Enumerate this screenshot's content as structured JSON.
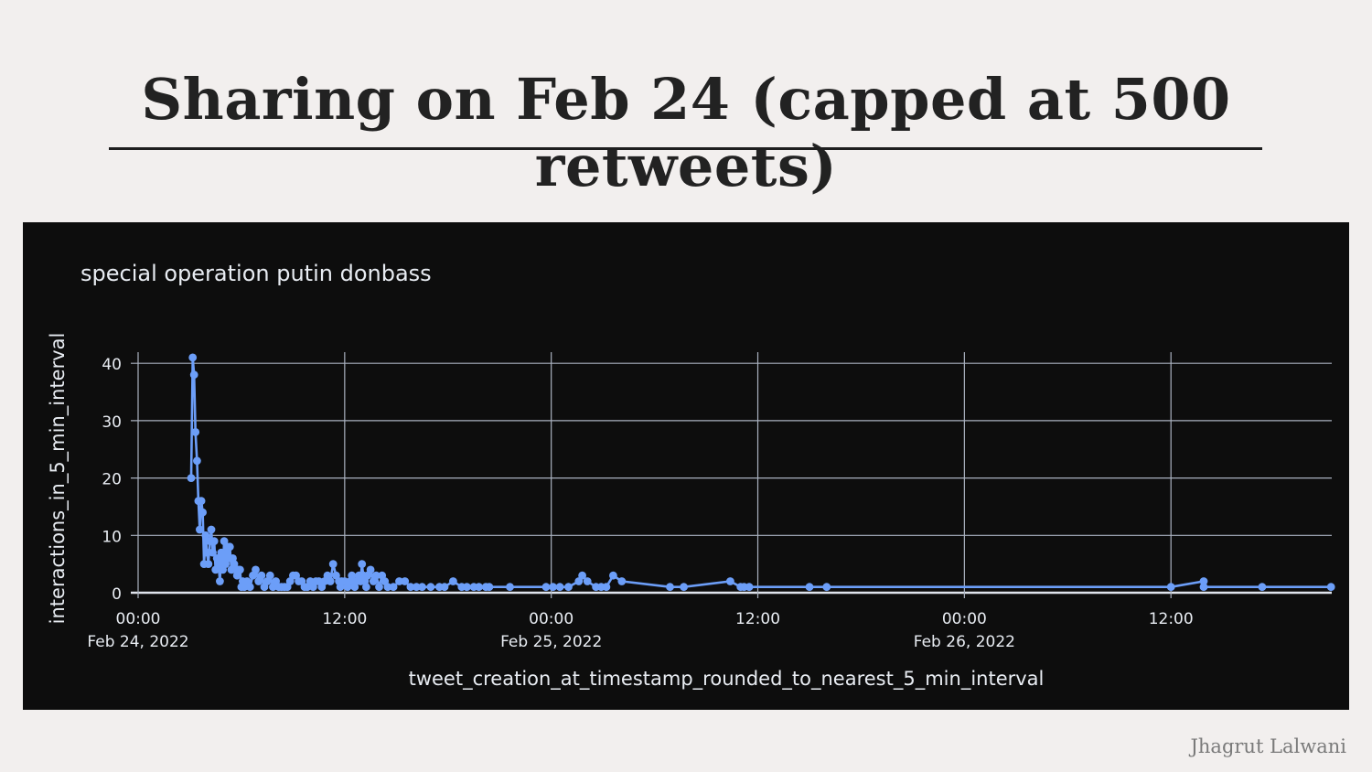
{
  "slide": {
    "title": "Sharing on Feb 24 (capped at 500 retweets)",
    "author": "Jhagrut Lalwani"
  },
  "chart_data": {
    "type": "line",
    "title": "special operation putin donbass",
    "xlabel": "tweet_creation_at_timestamp_rounded_to_nearest_5_min_interval",
    "ylabel": "interactions_in_5_min_interval",
    "x_ticks": [
      {
        "hour": 0,
        "label": "00:00",
        "sublabel": "Feb 24, 2022"
      },
      {
        "hour": 12,
        "label": "12:00",
        "sublabel": ""
      },
      {
        "hour": 24,
        "label": "00:00",
        "sublabel": "Feb 25, 2022"
      },
      {
        "hour": 36,
        "label": "12:00",
        "sublabel": ""
      },
      {
        "hour": 48,
        "label": "00:00",
        "sublabel": "Feb 26, 2022"
      },
      {
        "hour": 60,
        "label": "12:00",
        "sublabel": ""
      }
    ],
    "y_ticks": [
      0,
      10,
      20,
      30,
      40
    ],
    "xlim_hours": [
      0,
      69.3
    ],
    "ylim": [
      0,
      42
    ],
    "grid": true,
    "line_color": "#6c9ef8",
    "series": [
      {
        "points": [
          [
            3.08,
            20
          ],
          [
            3.17,
            41
          ],
          [
            3.25,
            38
          ],
          [
            3.33,
            28
          ],
          [
            3.42,
            23
          ],
          [
            3.5,
            16
          ],
          [
            3.58,
            11
          ],
          [
            3.67,
            16
          ],
          [
            3.75,
            14
          ],
          [
            3.83,
            5
          ],
          [
            3.92,
            10
          ],
          [
            4.0,
            7
          ],
          [
            4.08,
            5
          ],
          [
            4.17,
            9
          ],
          [
            4.25,
            11
          ],
          [
            4.33,
            7
          ],
          [
            4.42,
            9
          ],
          [
            4.5,
            4
          ],
          [
            4.58,
            6
          ],
          [
            4.67,
            5
          ],
          [
            4.75,
            2
          ],
          [
            4.83,
            7
          ],
          [
            4.92,
            4
          ],
          [
            5.0,
            9
          ],
          [
            5.08,
            5
          ],
          [
            5.17,
            8
          ],
          [
            5.25,
            6
          ],
          [
            5.33,
            8
          ],
          [
            5.42,
            4
          ],
          [
            5.5,
            6
          ],
          [
            5.58,
            5
          ],
          [
            5.67,
            4
          ],
          [
            5.75,
            3
          ],
          [
            5.83,
            4
          ],
          [
            5.92,
            4
          ],
          [
            6.0,
            1
          ],
          [
            6.08,
            2
          ],
          [
            6.17,
            1
          ],
          [
            6.33,
            2
          ],
          [
            6.5,
            1
          ],
          [
            6.67,
            3
          ],
          [
            6.83,
            4
          ],
          [
            7.0,
            2
          ],
          [
            7.17,
            3
          ],
          [
            7.33,
            1
          ],
          [
            7.5,
            2
          ],
          [
            7.67,
            3
          ],
          [
            7.83,
            1
          ],
          [
            8.0,
            2
          ],
          [
            8.17,
            1
          ],
          [
            8.33,
            1
          ],
          [
            8.5,
            1
          ],
          [
            8.67,
            1
          ],
          [
            8.83,
            2
          ],
          [
            9.0,
            3
          ],
          [
            9.17,
            3
          ],
          [
            9.33,
            2
          ],
          [
            9.5,
            2
          ],
          [
            9.67,
            1
          ],
          [
            9.83,
            1
          ],
          [
            10.0,
            2
          ],
          [
            10.17,
            1
          ],
          [
            10.33,
            2
          ],
          [
            10.5,
            2
          ],
          [
            10.67,
            1
          ],
          [
            10.83,
            2
          ],
          [
            11.0,
            3
          ],
          [
            11.17,
            2
          ],
          [
            11.33,
            5
          ],
          [
            11.5,
            3
          ],
          [
            11.67,
            2
          ],
          [
            11.75,
            1
          ],
          [
            11.83,
            2
          ],
          [
            12.0,
            2
          ],
          [
            12.17,
            1
          ],
          [
            12.33,
            2
          ],
          [
            12.42,
            3
          ],
          [
            12.5,
            2
          ],
          [
            12.58,
            1
          ],
          [
            12.67,
            2
          ],
          [
            12.83,
            3
          ],
          [
            12.92,
            2
          ],
          [
            13.0,
            5
          ],
          [
            13.08,
            3
          ],
          [
            13.17,
            2
          ],
          [
            13.25,
            1
          ],
          [
            13.33,
            3
          ],
          [
            13.5,
            4
          ],
          [
            13.67,
            2
          ],
          [
            13.83,
            3
          ],
          [
            14.0,
            1
          ],
          [
            14.17,
            3
          ],
          [
            14.33,
            2
          ],
          [
            14.5,
            1
          ],
          [
            14.83,
            1
          ],
          [
            15.17,
            2
          ],
          [
            15.5,
            2
          ],
          [
            15.83,
            1
          ],
          [
            16.17,
            1
          ],
          [
            16.5,
            1
          ],
          [
            17.0,
            1
          ],
          [
            17.5,
            1
          ],
          [
            17.8,
            1
          ],
          [
            18.3,
            2
          ],
          [
            18.8,
            1
          ],
          [
            19.1,
            1
          ],
          [
            19.5,
            1
          ],
          [
            19.8,
            1
          ],
          [
            20.2,
            1
          ],
          [
            20.4,
            1
          ],
          [
            21.6,
            1
          ],
          [
            23.7,
            1
          ],
          [
            24.1,
            1
          ],
          [
            24.5,
            1
          ],
          [
            25.0,
            1
          ],
          [
            25.6,
            2
          ],
          [
            25.8,
            3
          ],
          [
            26.1,
            2
          ],
          [
            26.6,
            1
          ],
          [
            26.9,
            1
          ],
          [
            27.2,
            1
          ],
          [
            27.6,
            3
          ],
          [
            28.1,
            2
          ],
          [
            30.9,
            1
          ],
          [
            31.7,
            1
          ],
          [
            34.4,
            2
          ],
          [
            35.0,
            1
          ],
          [
            35.2,
            1
          ],
          [
            35.5,
            1
          ],
          [
            39.0,
            1
          ],
          [
            40.0,
            1
          ],
          [
            61.9,
            2
          ],
          [
            60.0,
            1
          ],
          [
            61.9,
            1
          ],
          [
            65.3,
            1
          ],
          [
            69.3,
            1
          ]
        ]
      }
    ]
  }
}
